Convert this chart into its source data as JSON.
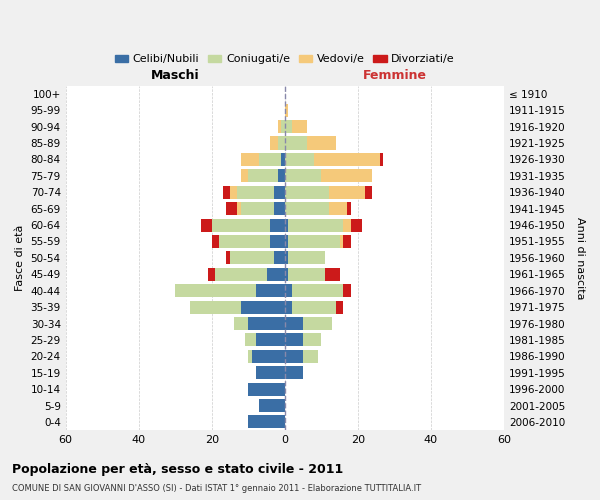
{
  "age_groups": [
    "0-4",
    "5-9",
    "10-14",
    "15-19",
    "20-24",
    "25-29",
    "30-34",
    "35-39",
    "40-44",
    "45-49",
    "50-54",
    "55-59",
    "60-64",
    "65-69",
    "70-74",
    "75-79",
    "80-84",
    "85-89",
    "90-94",
    "95-99",
    "100+"
  ],
  "birth_years": [
    "2006-2010",
    "2001-2005",
    "1996-2000",
    "1991-1995",
    "1986-1990",
    "1981-1985",
    "1976-1980",
    "1971-1975",
    "1966-1970",
    "1961-1965",
    "1956-1960",
    "1951-1955",
    "1946-1950",
    "1941-1945",
    "1936-1940",
    "1931-1935",
    "1926-1930",
    "1921-1925",
    "1916-1920",
    "1911-1915",
    "≤ 1910"
  ],
  "maschi": {
    "celibi": [
      10,
      7,
      10,
      8,
      9,
      8,
      10,
      12,
      8,
      5,
      3,
      4,
      4,
      3,
      3,
      2,
      1,
      0,
      0,
      0,
      0
    ],
    "coniugati": [
      0,
      0,
      0,
      0,
      1,
      3,
      4,
      14,
      22,
      14,
      12,
      14,
      16,
      9,
      10,
      8,
      6,
      2,
      1,
      0,
      0
    ],
    "vedovi": [
      0,
      0,
      0,
      0,
      0,
      0,
      0,
      0,
      0,
      0,
      0,
      0,
      0,
      1,
      2,
      2,
      5,
      2,
      1,
      0,
      0
    ],
    "divorziati": [
      0,
      0,
      0,
      0,
      0,
      0,
      0,
      0,
      0,
      2,
      1,
      2,
      3,
      3,
      2,
      0,
      0,
      0,
      0,
      0,
      0
    ]
  },
  "femmine": {
    "nubili": [
      0,
      0,
      0,
      5,
      5,
      5,
      5,
      2,
      2,
      1,
      1,
      1,
      1,
      0,
      0,
      0,
      0,
      0,
      0,
      0,
      0
    ],
    "coniugate": [
      0,
      0,
      0,
      0,
      4,
      5,
      8,
      12,
      14,
      10,
      10,
      14,
      15,
      12,
      12,
      10,
      8,
      6,
      2,
      0,
      0
    ],
    "vedove": [
      0,
      0,
      0,
      0,
      0,
      0,
      0,
      0,
      0,
      0,
      0,
      1,
      2,
      5,
      10,
      14,
      18,
      8,
      4,
      1,
      0
    ],
    "divorziate": [
      0,
      0,
      0,
      0,
      0,
      0,
      0,
      2,
      2,
      4,
      0,
      2,
      3,
      1,
      2,
      0,
      1,
      0,
      0,
      0,
      0
    ]
  },
  "colors": {
    "celibi": "#3a6ea5",
    "coniugati": "#c5d9a0",
    "vedovi": "#f5c97a",
    "divorziati": "#cc1a1a"
  },
  "xlim": 60,
  "title": "Popolazione per età, sesso e stato civile - 2011",
  "subtitle": "COMUNE DI SAN GIOVANNI D'ASSO (SI) - Dati ISTAT 1° gennaio 2011 - Elaborazione TUTTITALIA.IT",
  "ylabel": "Fasce di età",
  "ylabel_right": "Anni di nascita",
  "maschi_label": "Maschi",
  "femmine_label": "Femmine",
  "legend_labels": [
    "Celibi/Nubili",
    "Coniugati/e",
    "Vedovi/e",
    "Divorziati/e"
  ],
  "bg_color": "#f0f0f0",
  "plot_bg_color": "#ffffff"
}
